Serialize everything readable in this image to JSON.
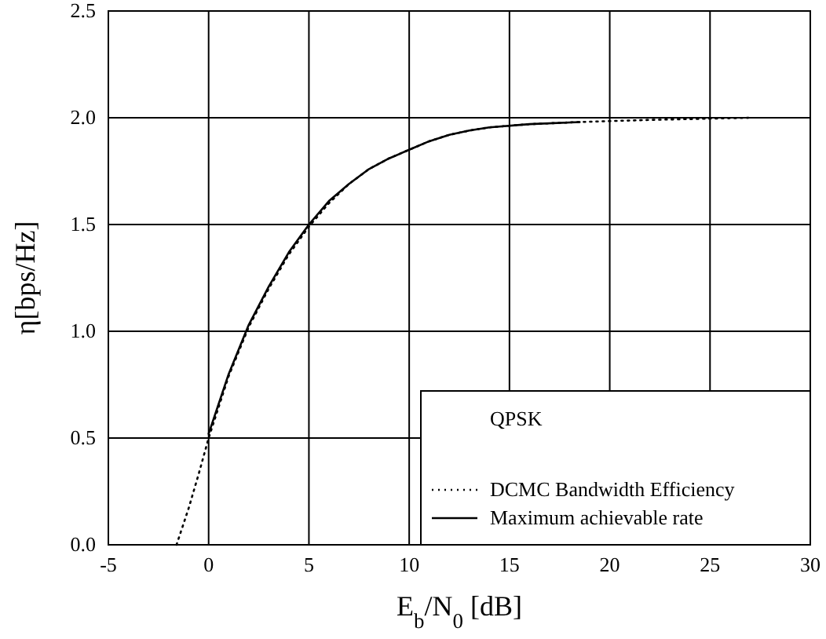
{
  "chart_data": {
    "type": "line",
    "xlabel": "E$_{b}$/N$_{0}$ [dB]",
    "ylabel": "η[bps/Hz]",
    "legend_title": "QPSK",
    "legend": "bottom right",
    "grid": true,
    "marker": "none",
    "xlim": [
      -5,
      30
    ],
    "xticks": [
      -5,
      0,
      5,
      10,
      15,
      20,
      25,
      30
    ],
    "ylim": [
      0,
      2.5
    ],
    "yticks": [
      {
        "value": 0,
        "label": "0.0"
      },
      {
        "value": 0.5,
        "label": "0.5"
      },
      {
        "value": 1,
        "label": "1.0"
      },
      {
        "value": 1.5,
        "label": "1.5"
      },
      {
        "value": 2,
        "label": "2.0"
      },
      {
        "value": 2.5,
        "label": "2.5"
      }
    ],
    "series": [
      {
        "name": "DCMC Bandwidth Efficiency",
        "color": "#000000",
        "line_style": "dotted",
        "x": [
          -1.6,
          -1,
          -0.5,
          0,
          1,
          2,
          3,
          4,
          5,
          6,
          7,
          8,
          9,
          10,
          11,
          12,
          13,
          14,
          16,
          18.5,
          22,
          27
        ],
        "values": [
          0,
          0.17,
          0.33,
          0.5,
          0.79,
          1.02,
          1.2,
          1.36,
          1.49,
          1.6,
          1.69,
          1.76,
          1.81,
          1.85,
          1.89,
          1.92,
          1.94,
          1.955,
          1.97,
          1.98,
          1.99,
          2.0
        ]
      },
      {
        "name": "Maximum achievable rate",
        "color": "#000000",
        "line_style": "solid",
        "x": [
          0,
          1,
          2,
          3,
          4,
          5,
          6,
          7,
          8,
          9,
          10,
          11,
          12,
          13,
          14,
          16,
          18.5
        ],
        "values": [
          0.52,
          0.8,
          1.03,
          1.21,
          1.37,
          1.5,
          1.61,
          1.69,
          1.76,
          1.81,
          1.85,
          1.89,
          1.92,
          1.94,
          1.955,
          1.97,
          1.98
        ]
      }
    ]
  }
}
